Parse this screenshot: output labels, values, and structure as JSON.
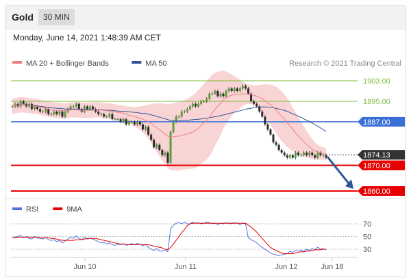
{
  "header": {
    "title": "Gold",
    "timeframe": "30 MIN"
  },
  "datetime": "Monday, June 14, 2021 1:48:39 AM CET",
  "chart_data": [
    {
      "type": "line",
      "legend": [
        {
          "name": "MA 20 + Bollinger Bands",
          "color": "#f08080"
        },
        {
          "name": "MA 50",
          "color": "#2f5597"
        }
      ],
      "credit": "Research © 2021 Trading Central",
      "x_ticks": [
        "Jun 10",
        "Jun 11",
        "Jun 12",
        "Jun 18"
      ],
      "ylim": [
        1856,
        1908
      ],
      "levels": [
        {
          "value": 1903.0,
          "label": "1903.00",
          "color": "#7cbb3a",
          "style": "text"
        },
        {
          "value": 1895.0,
          "label": "1895.00",
          "color": "#7cbb3a",
          "style": "text"
        },
        {
          "value": 1887.0,
          "label": "1887.00",
          "color": "#3b6fd8",
          "style": "badge"
        },
        {
          "value": 1870.0,
          "label": "1870.00",
          "color": "#e60000",
          "style": "badge"
        },
        {
          "value": 1860.0,
          "label": "1860.00",
          "color": "#e60000",
          "style": "badge"
        }
      ],
      "last_price": {
        "value": 1874.13,
        "label": "1874.13",
        "color": "#333333"
      },
      "close": [
        1893,
        1894,
        1893,
        1895,
        1894,
        1893,
        1894,
        1892,
        1893,
        1892,
        1891,
        1891,
        1892,
        1890,
        1890,
        1891,
        1890,
        1891,
        1889,
        1891,
        1892,
        1893,
        1893,
        1894,
        1892,
        1891,
        1893,
        1892,
        1893,
        1892,
        1891,
        1890,
        1890,
        1889,
        1889,
        1890,
        1888,
        1888,
        1888,
        1887,
        1888,
        1886,
        1887,
        1887,
        1886,
        1887,
        1886,
        1884,
        1885,
        1882,
        1880,
        1877,
        1878,
        1876,
        1874,
        1875,
        1871,
        1883,
        1887,
        1889,
        1889,
        1891,
        1891,
        1892,
        1893,
        1894,
        1893,
        1894,
        1895,
        1895,
        1896,
        1898,
        1898,
        1899,
        1897,
        1898,
        1897,
        1899,
        1900,
        1899,
        1900,
        1899,
        1900,
        1901,
        1900,
        1898,
        1895,
        1894,
        1893,
        1891,
        1889,
        1886,
        1884,
        1882,
        1879,
        1878,
        1876,
        1875,
        1874,
        1873,
        1874,
        1873,
        1875,
        1874,
        1874,
        1875,
        1874,
        1875,
        1874,
        1873,
        1875,
        1874,
        1874,
        1873
      ],
      "ma20": [
        1893.0,
        1893.3,
        1893.5,
        1893.6,
        1893.7,
        1893.4,
        1893.4,
        1893.2,
        1893.1,
        1893.0,
        1892.7,
        1892.4,
        1892.2,
        1892.0,
        1891.8,
        1891.6,
        1891.5,
        1891.4,
        1891.3,
        1891.2,
        1891.5,
        1891.6,
        1891.7,
        1891.6,
        1891.6,
        1891.5,
        1891.5,
        1891.5,
        1891.5,
        1891.6,
        1891.7,
        1891.7,
        1891.6,
        1891.4,
        1891.3,
        1891.2,
        1891.1,
        1890.9,
        1890.6,
        1890.5,
        1890.3,
        1889.9,
        1889.6,
        1889.3,
        1889.0,
        1888.7,
        1888.4,
        1888.0,
        1887.6,
        1887.0,
        1886.3,
        1885.5,
        1884.7,
        1883.9,
        1883.0,
        1882.3,
        1881.3,
        1881.1,
        1881.1,
        1881.3,
        1881.4,
        1881.7,
        1882.0,
        1882.2,
        1882.6,
        1883.0,
        1883.6,
        1884.5,
        1885.6,
        1886.6,
        1887.7,
        1888.9,
        1890.3,
        1891.9,
        1893.1,
        1894.3,
        1895.6,
        1896.4,
        1896.9,
        1897.4,
        1897.6,
        1897.7,
        1897.8,
        1897.9,
        1897.9,
        1897.8,
        1897.6,
        1897.4,
        1897.0,
        1896.5,
        1896.0,
        1895.2,
        1894.4,
        1893.6,
        1892.6,
        1891.6,
        1890.4,
        1889.2,
        1888.0,
        1886.7,
        1885.4,
        1884.1,
        1882.8,
        1881.5,
        1880.3,
        1879.3,
        1878.2,
        1877.2,
        1876.4,
        1875.6,
        1875.2,
        1874.8,
        1874.6,
        1874.4
      ],
      "ma50": [
        1893.0,
        1893.3,
        1893.5,
        1893.6,
        1893.7,
        1893.6,
        1893.5,
        1893.4,
        1893.3,
        1893.2,
        1893.0,
        1892.9,
        1892.8,
        1892.6,
        1892.5,
        1892.4,
        1892.3,
        1892.2,
        1892.1,
        1892.0,
        1892.0,
        1892.0,
        1892.0,
        1892.0,
        1892.0,
        1891.9,
        1891.9,
        1891.9,
        1891.8,
        1891.8,
        1891.8,
        1891.8,
        1891.7,
        1891.6,
        1891.5,
        1891.5,
        1891.4,
        1891.3,
        1891.2,
        1891.1,
        1891.1,
        1891.0,
        1890.9,
        1890.8,
        1890.7,
        1890.6,
        1890.4,
        1890.3,
        1890.2,
        1890.0,
        1889.7,
        1889.4,
        1889.1,
        1888.8,
        1888.5,
        1888.2,
        1887.8,
        1887.6,
        1887.5,
        1887.5,
        1887.5,
        1887.5,
        1887.6,
        1887.6,
        1887.7,
        1887.8,
        1887.9,
        1888.0,
        1888.1,
        1888.3,
        1888.4,
        1888.6,
        1888.8,
        1889.0,
        1889.2,
        1889.4,
        1889.7,
        1889.9,
        1890.2,
        1890.5,
        1890.8,
        1891.0,
        1891.3,
        1891.6,
        1891.9,
        1892.1,
        1892.3,
        1892.5,
        1892.6,
        1892.7,
        1892.8,
        1892.8,
        1892.8,
        1892.6,
        1892.5,
        1892.3,
        1892.0,
        1891.7,
        1891.4,
        1891.1,
        1890.6,
        1890.1,
        1889.7,
        1889.2,
        1888.7,
        1888.1,
        1887.6,
        1887.1,
        1886.5,
        1885.9,
        1885.3,
        1884.6,
        1883.9,
        1883.2
      ],
      "bb_upper": [
        1896.0,
        1896.3,
        1896.5,
        1896.6,
        1896.7,
        1896.4,
        1896.4,
        1896.2,
        1896.1,
        1896.0,
        1895.7,
        1895.4,
        1895.2,
        1895.0,
        1894.8,
        1894.6,
        1894.5,
        1894.4,
        1894.3,
        1894.2,
        1894.5,
        1894.6,
        1894.7,
        1894.6,
        1894.6,
        1894.5,
        1894.5,
        1894.5,
        1894.5,
        1894.6,
        1894.7,
        1894.7,
        1894.6,
        1894.4,
        1894.3,
        1894.2,
        1894.1,
        1893.9,
        1893.6,
        1893.5,
        1893.3,
        1893.1,
        1893.0,
        1892.9,
        1892.8,
        1892.9,
        1893.0,
        1893.2,
        1893.4,
        1893.7,
        1893.9,
        1894.1,
        1894.2,
        1894.2,
        1894.1,
        1894.0,
        1893.9,
        1894.0,
        1894.2,
        1894.5,
        1894.8,
        1895.1,
        1895.5,
        1896.0,
        1896.6,
        1897.3,
        1898.2,
        1899.3,
        1900.6,
        1901.8,
        1903.0,
        1904.2,
        1905.3,
        1906.1,
        1906.5,
        1906.8,
        1906.9,
        1906.6,
        1906.1,
        1905.5,
        1904.8,
        1904.1,
        1903.3,
        1902.6,
        1902.0,
        1901.6,
        1901.3,
        1901.2,
        1901.2,
        1901.3,
        1901.5,
        1901.6,
        1901.6,
        1901.5,
        1901.2,
        1900.7,
        1899.9,
        1898.9,
        1897.6,
        1896.2,
        1894.5,
        1892.7,
        1890.8,
        1888.9,
        1886.9,
        1885.1,
        1883.4,
        1881.7,
        1880.3,
        1879.0,
        1878.1,
        1877.4,
        1877.0,
        1876.7
      ],
      "bb_lower": [
        1890.0,
        1890.3,
        1890.5,
        1890.6,
        1890.7,
        1890.4,
        1890.4,
        1890.2,
        1890.1,
        1890.0,
        1889.7,
        1889.4,
        1889.2,
        1889.0,
        1888.8,
        1888.6,
        1888.5,
        1888.4,
        1888.3,
        1888.2,
        1888.5,
        1888.6,
        1888.7,
        1888.6,
        1888.6,
        1888.5,
        1888.5,
        1888.5,
        1888.5,
        1888.6,
        1888.7,
        1888.7,
        1888.6,
        1888.4,
        1888.3,
        1888.2,
        1888.1,
        1887.9,
        1887.6,
        1887.5,
        1887.3,
        1886.7,
        1886.2,
        1885.7,
        1885.2,
        1884.5,
        1883.8,
        1882.8,
        1881.8,
        1880.3,
        1878.7,
        1876.9,
        1875.2,
        1873.6,
        1871.9,
        1870.6,
        1868.7,
        1868.2,
        1868.0,
        1868.1,
        1868.0,
        1868.3,
        1868.5,
        1868.4,
        1868.6,
        1868.7,
        1869.0,
        1869.7,
        1870.6,
        1871.4,
        1872.4,
        1873.6,
        1875.3,
        1877.7,
        1879.7,
        1881.8,
        1884.3,
        1886.2,
        1887.7,
        1889.3,
        1890.4,
        1891.3,
        1892.3,
        1893.2,
        1893.8,
        1894.0,
        1893.9,
        1893.6,
        1892.8,
        1891.7,
        1890.5,
        1888.8,
        1887.2,
        1885.7,
        1884.0,
        1882.5,
        1880.9,
        1879.5,
        1878.4,
        1877.2,
        1876.3,
        1875.5,
        1874.8,
        1874.1,
        1873.7,
        1873.5,
        1873.0,
        1872.7,
        1872.5,
        1872.2,
        1872.3,
        1872.2,
        1872.2,
        1872.1
      ]
    },
    {
      "type": "line",
      "legend": [
        {
          "name": "RSI",
          "color": "#4f74e0"
        },
        {
          "name": "9MA",
          "color": "#e60000"
        }
      ],
      "levels": [
        70,
        50,
        30
      ],
      "ylim": [
        15,
        80
      ],
      "rsi": [
        48,
        49,
        50,
        52,
        48,
        50,
        47,
        46,
        50,
        48,
        47,
        46,
        49,
        45,
        44,
        45,
        42,
        44,
        40,
        43,
        46,
        49,
        47,
        51,
        47,
        45,
        49,
        46,
        47,
        46,
        44,
        42,
        40,
        41,
        38,
        40,
        37,
        36,
        38,
        37,
        39,
        36,
        37,
        39,
        37,
        39,
        38,
        35,
        38,
        33,
        30,
        28,
        31,
        27,
        27,
        28,
        26,
        62,
        68,
        71,
        72,
        70,
        73,
        70,
        70,
        73,
        71,
        72,
        70,
        71,
        73,
        72,
        70,
        71,
        69,
        71,
        70,
        72,
        71,
        70,
        72,
        71,
        69,
        71,
        70,
        48,
        45,
        43,
        40,
        36,
        33,
        30,
        27,
        24,
        22,
        21,
        20,
        21,
        22,
        23,
        27,
        25,
        28,
        27,
        29,
        26,
        30,
        28,
        31,
        29,
        33,
        30,
        31,
        29
      ],
      "ma9": [
        48,
        48,
        49,
        49,
        49,
        49,
        49,
        49,
        49,
        49,
        48,
        48,
        48,
        48,
        47,
        47,
        46,
        45,
        44,
        44,
        44,
        44,
        44,
        45,
        45,
        45,
        46,
        47,
        47,
        47,
        47,
        46,
        45,
        44,
        43,
        42,
        41,
        40,
        39,
        38,
        38,
        38,
        37,
        37,
        37,
        37,
        38,
        37,
        37,
        37,
        36,
        35,
        34,
        33,
        32,
        30,
        29,
        33,
        38,
        44,
        50,
        56,
        61,
        67,
        70,
        71,
        71,
        71,
        71,
        71,
        71,
        71,
        71,
        71,
        71,
        71,
        71,
        71,
        71,
        71,
        71,
        71,
        71,
        71,
        71,
        68,
        65,
        61,
        57,
        52,
        47,
        42,
        37,
        33,
        30,
        28,
        26,
        24,
        23,
        23,
        23,
        23,
        24,
        25,
        26,
        26,
        27,
        27,
        28,
        29,
        29,
        29,
        30,
        30
      ]
    }
  ]
}
